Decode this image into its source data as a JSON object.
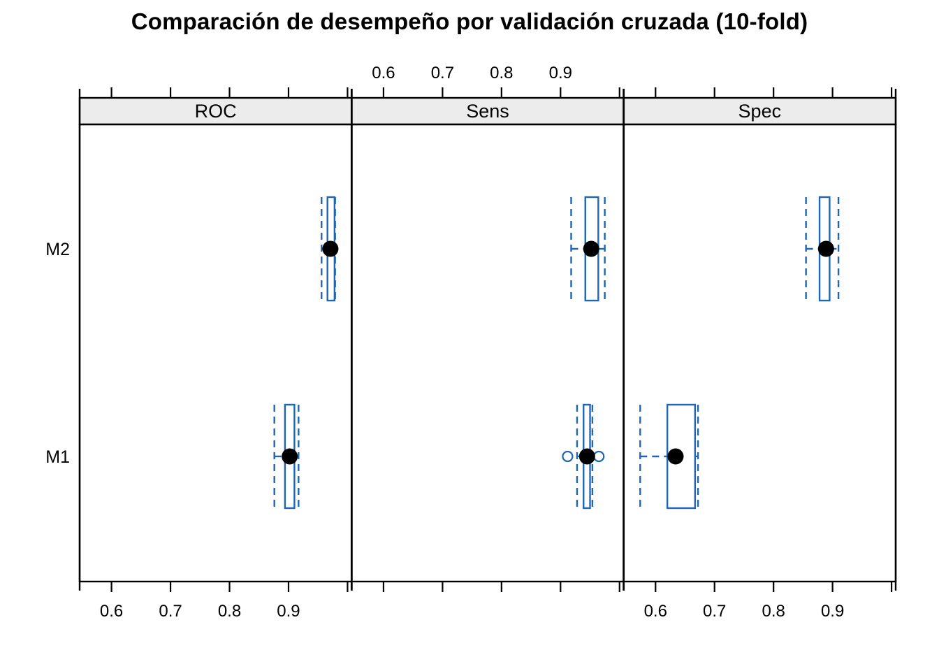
{
  "chart_data": {
    "type": "boxplot",
    "orientation": "horizontal",
    "title": "Comparación de desempeño por validación cruzada (10-fold)",
    "panel_metrics": [
      "ROC",
      "Sens",
      "Spec"
    ],
    "y_categories_top_to_bottom": [
      "M2",
      "M1"
    ],
    "x_axis": {
      "range": [
        0.546,
        1.007
      ],
      "ticks": [
        0.6,
        0.7,
        0.8,
        0.9,
        1.0
      ],
      "tick_labels": [
        "0.6",
        "0.7",
        "0.8",
        "0.9",
        ""
      ],
      "bottom_labeled_panels": [
        0,
        2
      ],
      "top_labeled_panels": [
        1
      ]
    },
    "panels": [
      {
        "metric": "ROC",
        "boxes": [
          {
            "model": "M2",
            "whisker_low": 0.956,
            "q1": 0.966,
            "median": 0.971,
            "q3": 0.978,
            "whisker_high": 0.979,
            "outliers": []
          },
          {
            "model": "M1",
            "whisker_low": 0.876,
            "q1": 0.894,
            "median": 0.902,
            "q3": 0.91,
            "whisker_high": 0.917,
            "outliers": []
          }
        ]
      },
      {
        "metric": "Sens",
        "boxes": [
          {
            "model": "M2",
            "whisker_low": 0.918,
            "q1": 0.942,
            "median": 0.952,
            "q3": 0.964,
            "whisker_high": 0.975,
            "outliers": []
          },
          {
            "model": "M1",
            "whisker_low": 0.928,
            "q1": 0.939,
            "median": 0.945,
            "q3": 0.95,
            "whisker_high": 0.954,
            "outliers": [
              0.912,
              0.965
            ]
          }
        ]
      },
      {
        "metric": "Spec",
        "boxes": [
          {
            "model": "M2",
            "whisker_low": 0.855,
            "q1": 0.878,
            "median": 0.889,
            "q3": 0.895,
            "whisker_high": 0.91,
            "outliers": []
          },
          {
            "model": "M1",
            "whisker_low": 0.574,
            "q1": 0.62,
            "median": 0.634,
            "q3": 0.667,
            "whisker_high": 0.672,
            "outliers": []
          }
        ]
      }
    ]
  },
  "style": {
    "box_color": "#2066B2",
    "median_dot_color": "#000000",
    "outlier_color": "#2066B2",
    "strip_fill": "#ECECEC",
    "axis_color": "#000000",
    "background": "#FFFFFF"
  }
}
